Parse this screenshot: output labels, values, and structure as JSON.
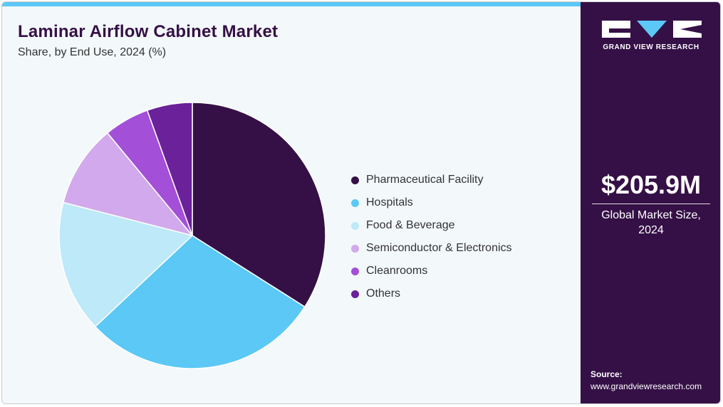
{
  "header": {
    "title": "Laminar Airflow Cabinet Market",
    "subtitle": "Share, by End Use, 2024 (%)"
  },
  "brand": {
    "name": "GRAND VIEW RESEARCH",
    "logo_icon": "gvr-logo-icon"
  },
  "kpi": {
    "value": "$205.9M",
    "label": "Global Market Size, 2024"
  },
  "source": {
    "label": "Source:",
    "url": "www.grandviewresearch.com"
  },
  "colors": {
    "accent_bar": "#5bc8f5",
    "side_panel": "#351046",
    "title": "#351046"
  },
  "chart_data": {
    "type": "pie",
    "start_angle_deg": 0,
    "direction": "clockwise",
    "legend_position": "right",
    "categories": [
      "Pharmaceutical Facility",
      "Hospitals",
      "Food & Beverage",
      "Semiconductor & Electronics",
      "Cleanrooms",
      "Others"
    ],
    "values": [
      34,
      29,
      16,
      10,
      5.5,
      5.5
    ],
    "colors": [
      "#351046",
      "#5bc8f5",
      "#bde9f9",
      "#d2a9ec",
      "#a34fd8",
      "#6a2199"
    ]
  }
}
